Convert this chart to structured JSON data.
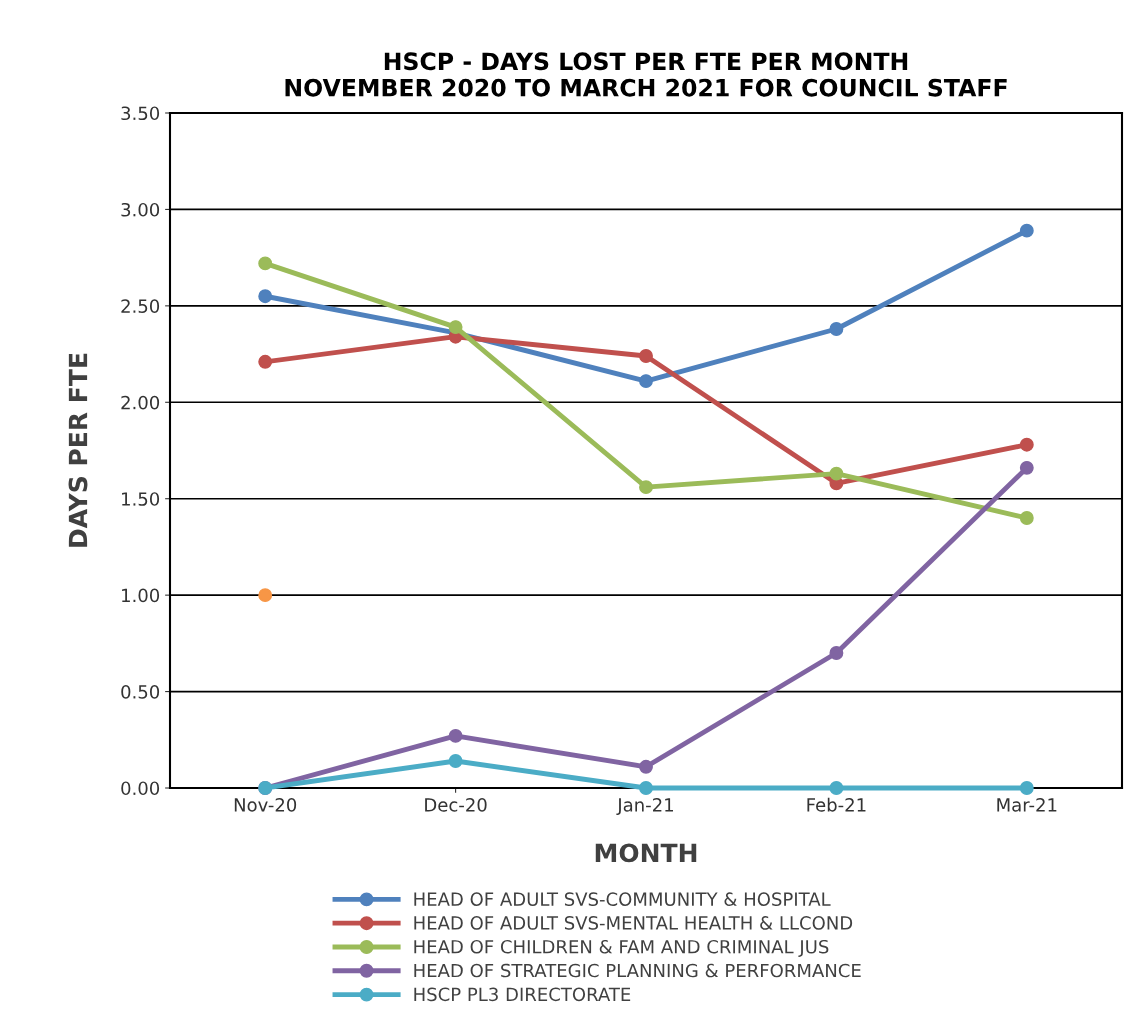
{
  "chart_data": {
    "type": "line",
    "title": "HSCP - DAYS LOST PER FTE PER MONTH\nNOVEMBER 2020 TO MARCH 2021 FOR COUNCIL STAFF",
    "xlabel": "MONTH",
    "ylabel": "DAYS PER FTE",
    "categories": [
      "Nov-20",
      "Dec-20",
      "Jan-21",
      "Feb-21",
      "Mar-21"
    ],
    "series": [
      {
        "name": "HEAD OF ADULT SVS-COMMUNITY & HOSPITAL",
        "color": "#4f81bd",
        "values": [
          2.55,
          2.36,
          2.11,
          2.38,
          2.89
        ]
      },
      {
        "name": "HEAD OF ADULT SVS-MENTAL HEALTH & LLCOND",
        "color": "#c0504d",
        "values": [
          2.21,
          2.34,
          2.24,
          1.58,
          1.78
        ]
      },
      {
        "name": "HEAD OF CHILDREN & FAM AND CRIMINAL JUS",
        "color": "#9bbb59",
        "values": [
          2.72,
          2.39,
          1.56,
          1.63,
          1.4
        ]
      },
      {
        "name": "HEAD OF STRATEGIC PLANNING & PERFORMANCE",
        "color": "#8064a2",
        "values": [
          0.0,
          0.27,
          0.11,
          0.7,
          1.66
        ]
      },
      {
        "name": "HSCP PL3 DIRECTORATE",
        "color": "#4bacc6",
        "values": [
          0.0,
          0.14,
          0.0,
          0.0,
          0.0
        ]
      },
      {
        "color": "#f79646",
        "values": [
          1.0,
          null,
          null,
          null,
          null
        ]
      }
    ],
    "ylim": [
      0,
      3.5
    ],
    "yticks": [
      {
        "value": 0,
        "label": "0.00"
      },
      {
        "value": 0.5,
        "label": "0.50"
      },
      {
        "value": 1,
        "label": "1.00"
      },
      {
        "value": 1.5,
        "label": "1.50"
      },
      {
        "value": 2,
        "label": "2.00"
      },
      {
        "value": 2.5,
        "label": "2.50"
      },
      {
        "value": 3,
        "label": "3.00"
      },
      {
        "value": 3.5,
        "label": "3.50"
      }
    ],
    "grid": "y",
    "legend": "bottom",
    "marker": "circle",
    "line_style": "solid"
  }
}
